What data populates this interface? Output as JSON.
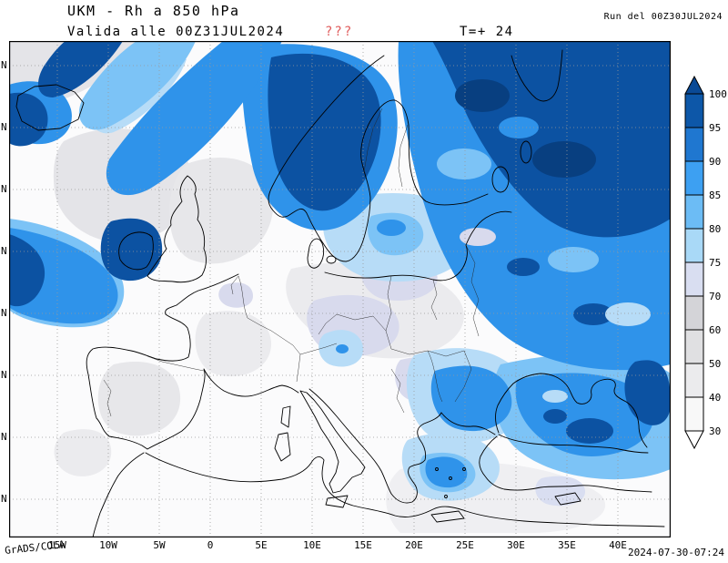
{
  "header": {
    "title": "UKM - Rh a 850 hPa",
    "run": "Run del 00Z30JUL2024",
    "valid": "Valida alle 00Z31JUL2024",
    "qmarks": "???",
    "qmarks_color": "#e05c5c",
    "lead": "T=+ 24"
  },
  "map": {
    "lat_labels": [
      "N",
      "N",
      "N",
      "N",
      "N",
      "N",
      "N",
      "N"
    ],
    "lon_labels": [
      "15W",
      "10W",
      "5W",
      "0",
      "5E",
      "10E",
      "15E",
      "20E",
      "25E",
      "30E",
      "35E",
      "40E"
    ]
  },
  "colorbar": {
    "labels": [
      "100",
      "95",
      "90",
      "85",
      "80",
      "75",
      "70",
      "60",
      "50",
      "40",
      "30"
    ],
    "segment_colors": [
      "#0d57a8",
      "#1f77d0",
      "#3da0f2",
      "#6cbcf5",
      "#a9d9f7",
      "#d9def1",
      "#d4d4d8",
      "#e0e0e2",
      "#ebebed",
      "#f8f8f8"
    ],
    "arrow_top_color": "#0a4a96",
    "arrow_bottom_color": "#ffffff"
  },
  "footer": {
    "credit": "GrADS/COLA",
    "generated": "2024-07-30-07:24"
  }
}
